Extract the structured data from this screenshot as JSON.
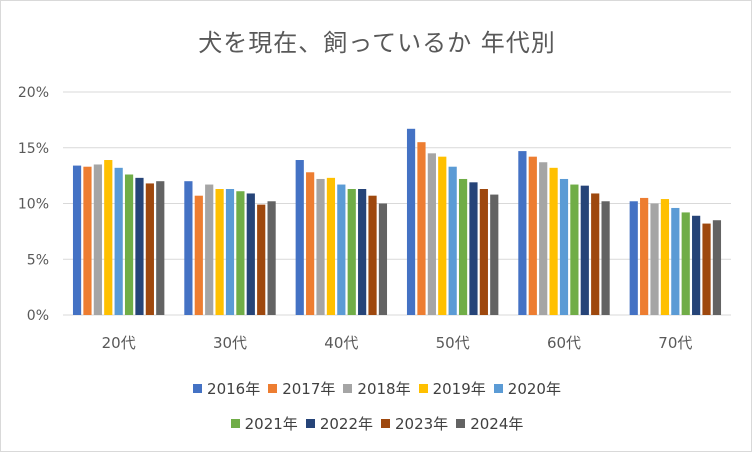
{
  "chart_data": {
    "type": "bar",
    "title": "犬を現在、飼っているか 年代別",
    "categories": [
      "20代",
      "30代",
      "40代",
      "50代",
      "60代",
      "70代"
    ],
    "ylim": [
      0,
      20
    ],
    "yticks": [
      "0%",
      "5%",
      "10%",
      "15%",
      "20%"
    ],
    "grid": true,
    "legend_position": "bottom",
    "series": [
      {
        "name": "2016年",
        "color": "#4472C4",
        "values": [
          13.4,
          12.0,
          13.9,
          16.7,
          14.7,
          10.2
        ]
      },
      {
        "name": "2017年",
        "color": "#ED7D31",
        "values": [
          13.3,
          10.7,
          12.8,
          15.5,
          14.2,
          10.5
        ]
      },
      {
        "name": "2018年",
        "color": "#A5A5A5",
        "values": [
          13.5,
          11.7,
          12.2,
          14.5,
          13.7,
          10.0
        ]
      },
      {
        "name": "2019年",
        "color": "#FFC000",
        "values": [
          13.9,
          11.3,
          12.3,
          14.2,
          13.2,
          10.4
        ]
      },
      {
        "name": "2020年",
        "color": "#5B9BD5",
        "values": [
          13.2,
          11.3,
          11.7,
          13.3,
          12.2,
          9.6
        ]
      },
      {
        "name": "2021年",
        "color": "#70AD47",
        "values": [
          12.6,
          11.1,
          11.3,
          12.2,
          11.7,
          9.2
        ]
      },
      {
        "name": "2022年",
        "color": "#264478",
        "values": [
          12.3,
          10.9,
          11.3,
          11.9,
          11.6,
          8.9
        ]
      },
      {
        "name": "2023年",
        "color": "#9E480E",
        "values": [
          11.8,
          9.9,
          10.7,
          11.3,
          10.9,
          8.2
        ]
      },
      {
        "name": "2024年",
        "color": "#636363",
        "values": [
          12.0,
          10.2,
          10.0,
          10.8,
          10.2,
          8.5
        ]
      }
    ]
  }
}
